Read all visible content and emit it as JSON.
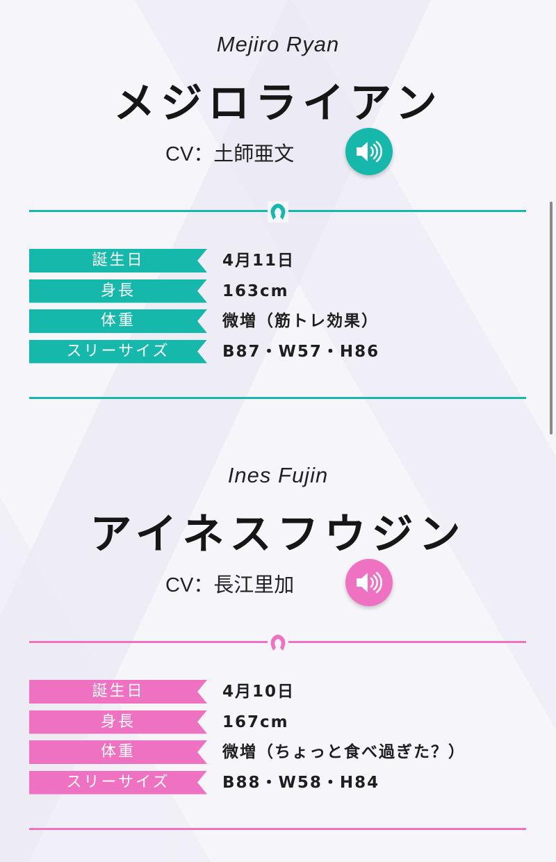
{
  "characters": [
    {
      "name_en": "Mejiro Ryan",
      "name_jp": "メジロライアン",
      "cv_label": "CV：",
      "cv_name": "土師亜文",
      "accent": "#17b8ac",
      "speaker_icon": "speaker-icon",
      "divider_icon": "horseshoe-icon",
      "profile": [
        {
          "label": "誕生日",
          "value": "4月11日"
        },
        {
          "label": "身長",
          "value": "163cm"
        },
        {
          "label": "体重",
          "value": "微増（筋トレ効果）"
        },
        {
          "label": "スリーサイズ",
          "value": "B87・W57・H86"
        }
      ]
    },
    {
      "name_en": "Ines Fujin",
      "name_jp": "アイネスフウジン",
      "cv_label": "CV：",
      "cv_name": "長江里加",
      "accent": "#ef72c2",
      "speaker_icon": "speaker-icon",
      "divider_icon": "horseshoe-icon",
      "profile": [
        {
          "label": "誕生日",
          "value": "4月10日"
        },
        {
          "label": "身長",
          "value": "167cm"
        },
        {
          "label": "体重",
          "value": "微増（ちょっと食べ過ぎた？）"
        },
        {
          "label": "スリーサイズ",
          "value": "B88・W58・H84"
        }
      ]
    }
  ]
}
